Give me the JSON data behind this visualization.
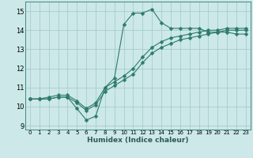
{
  "xlabel": "Humidex (Indice chaleur)",
  "bg_color": "#cce8e8",
  "grid_color": "#a0c8c8",
  "line_color": "#2d7a6e",
  "xlim": [
    -0.5,
    23.5
  ],
  "ylim": [
    8.8,
    15.5
  ],
  "xticks": [
    0,
    1,
    2,
    3,
    4,
    5,
    6,
    7,
    8,
    9,
    10,
    11,
    12,
    13,
    14,
    15,
    16,
    17,
    18,
    19,
    20,
    21,
    22,
    23
  ],
  "yticks": [
    9,
    10,
    11,
    12,
    13,
    14,
    15
  ],
  "line1_x": [
    0,
    1,
    2,
    3,
    4,
    5,
    6,
    7,
    8,
    9,
    10,
    11,
    12,
    13,
    14,
    15,
    16,
    17,
    18,
    19,
    20,
    21,
    22,
    23
  ],
  "line1_y": [
    10.4,
    10.4,
    10.4,
    10.5,
    10.5,
    9.9,
    9.3,
    9.5,
    11.0,
    11.5,
    14.3,
    14.9,
    14.9,
    15.1,
    14.4,
    14.1,
    14.1,
    14.1,
    14.1,
    13.9,
    13.9,
    13.9,
    13.8,
    13.8
  ],
  "line2_x": [
    0,
    1,
    2,
    3,
    4,
    5,
    6,
    7,
    8,
    9,
    10,
    11,
    12,
    13,
    14,
    15,
    16,
    17,
    18,
    19,
    20,
    21,
    22,
    23
  ],
  "line2_y": [
    10.4,
    10.4,
    10.4,
    10.5,
    10.5,
    10.2,
    9.8,
    10.1,
    10.8,
    11.1,
    11.4,
    11.7,
    12.3,
    12.8,
    13.1,
    13.3,
    13.5,
    13.6,
    13.7,
    13.8,
    13.9,
    14.0,
    14.0,
    14.0
  ],
  "line3_x": [
    0,
    1,
    2,
    3,
    4,
    5,
    6,
    7,
    8,
    9,
    10,
    11,
    12,
    13,
    14,
    15,
    16,
    17,
    18,
    19,
    20,
    21,
    22,
    23
  ],
  "line3_y": [
    10.4,
    10.4,
    10.5,
    10.6,
    10.6,
    10.3,
    9.9,
    10.2,
    11.0,
    11.3,
    11.6,
    12.0,
    12.6,
    13.1,
    13.4,
    13.6,
    13.7,
    13.8,
    13.9,
    14.0,
    14.0,
    14.1,
    14.1,
    14.1
  ]
}
